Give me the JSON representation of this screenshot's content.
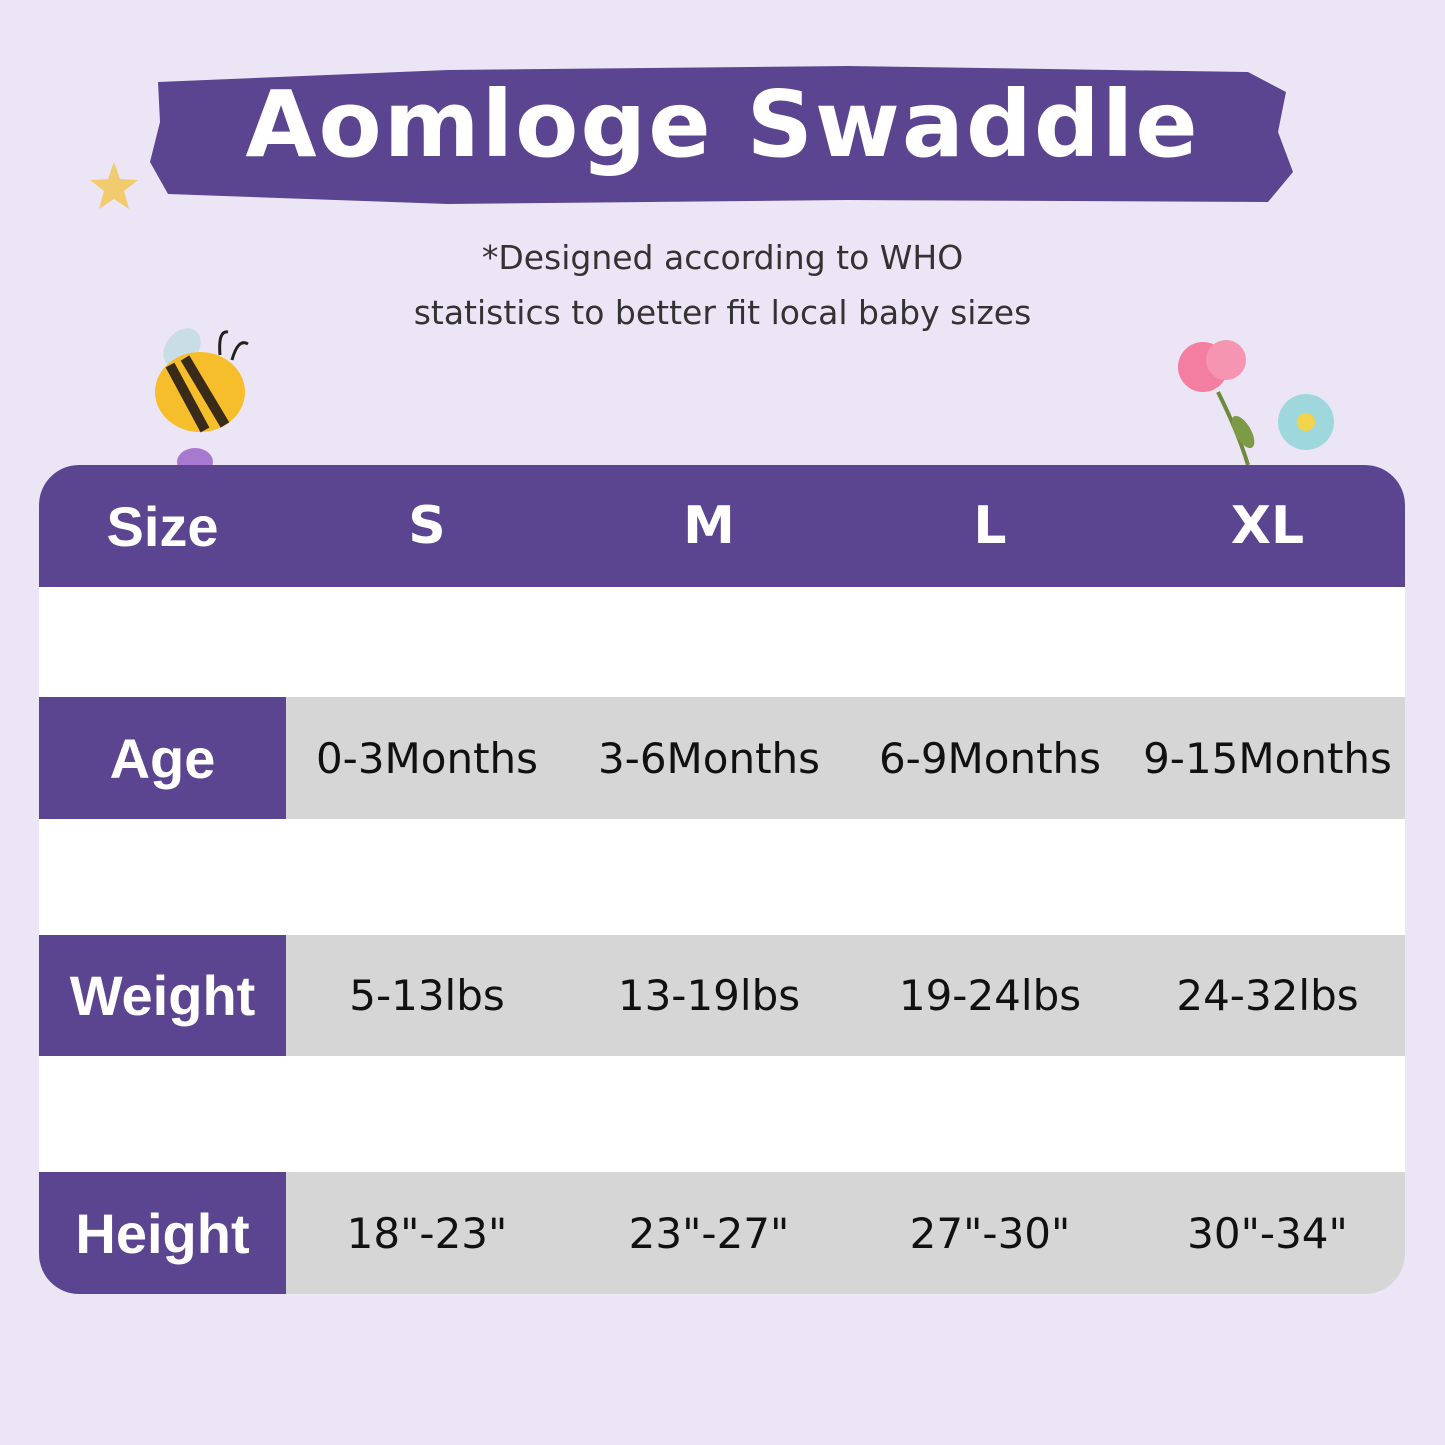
{
  "title": "Aomloge Swaddle",
  "subtitle": [
    "*Designed according to WHO",
    "statistics to better fit local baby sizes"
  ],
  "colors": {
    "background": "#ece5f6",
    "accent": "#5b4590",
    "cell": "#d6d6d6"
  },
  "decorations": [
    "star-icon",
    "bee-icon",
    "flower-icon"
  ],
  "table": {
    "header": {
      "label": "Size",
      "sizes": [
        "S",
        "M",
        "L",
        "XL"
      ]
    },
    "rows": [
      {
        "label": "Age",
        "values": [
          "0-3Months",
          "3-6Months",
          "6-9Months",
          "9-15Months"
        ]
      },
      {
        "label": "Weight",
        "values": [
          "5-13lbs",
          "13-19lbs",
          "19-24lbs",
          "24-32lbs"
        ]
      },
      {
        "label": "Height",
        "values": [
          "18\"-23\"",
          "23\"-27\"",
          "27\"-30\"",
          "30\"-34\""
        ]
      }
    ]
  }
}
